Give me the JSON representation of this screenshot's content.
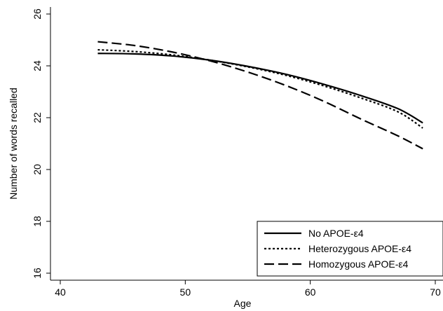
{
  "chart_data": {
    "type": "line",
    "xlabel": "Age",
    "ylabel": "Number of words recalled",
    "xlim": [
      40,
      70
    ],
    "ylim": [
      16,
      26
    ],
    "x_ticks": [
      40,
      50,
      60,
      70
    ],
    "y_ticks": [
      16,
      18,
      20,
      22,
      24,
      26
    ],
    "x_tick_labels": [
      "40",
      "50",
      "60",
      "70"
    ],
    "y_tick_labels": [
      "16",
      "18",
      "20",
      "22",
      "24",
      "26"
    ],
    "grid": false,
    "legend_position": "bottom-right",
    "x": [
      43,
      46,
      49,
      52,
      55,
      58,
      61,
      64,
      67,
      69
    ],
    "series": [
      {
        "name": "No APOE-ε4",
        "dash": "solid",
        "values": [
          24.48,
          24.46,
          24.38,
          24.22,
          23.98,
          23.68,
          23.3,
          22.86,
          22.35,
          21.8
        ]
      },
      {
        "name": "Heterozygous APOE-ε4",
        "dash": "dotted",
        "values": [
          24.62,
          24.55,
          24.42,
          24.22,
          23.96,
          23.64,
          23.24,
          22.77,
          22.23,
          21.6
        ]
      },
      {
        "name": "Homozygous APOE-ε4",
        "dash": "dashed",
        "values": [
          24.93,
          24.78,
          24.53,
          24.19,
          23.76,
          23.25,
          22.65,
          21.96,
          21.3,
          20.8
        ]
      }
    ]
  }
}
